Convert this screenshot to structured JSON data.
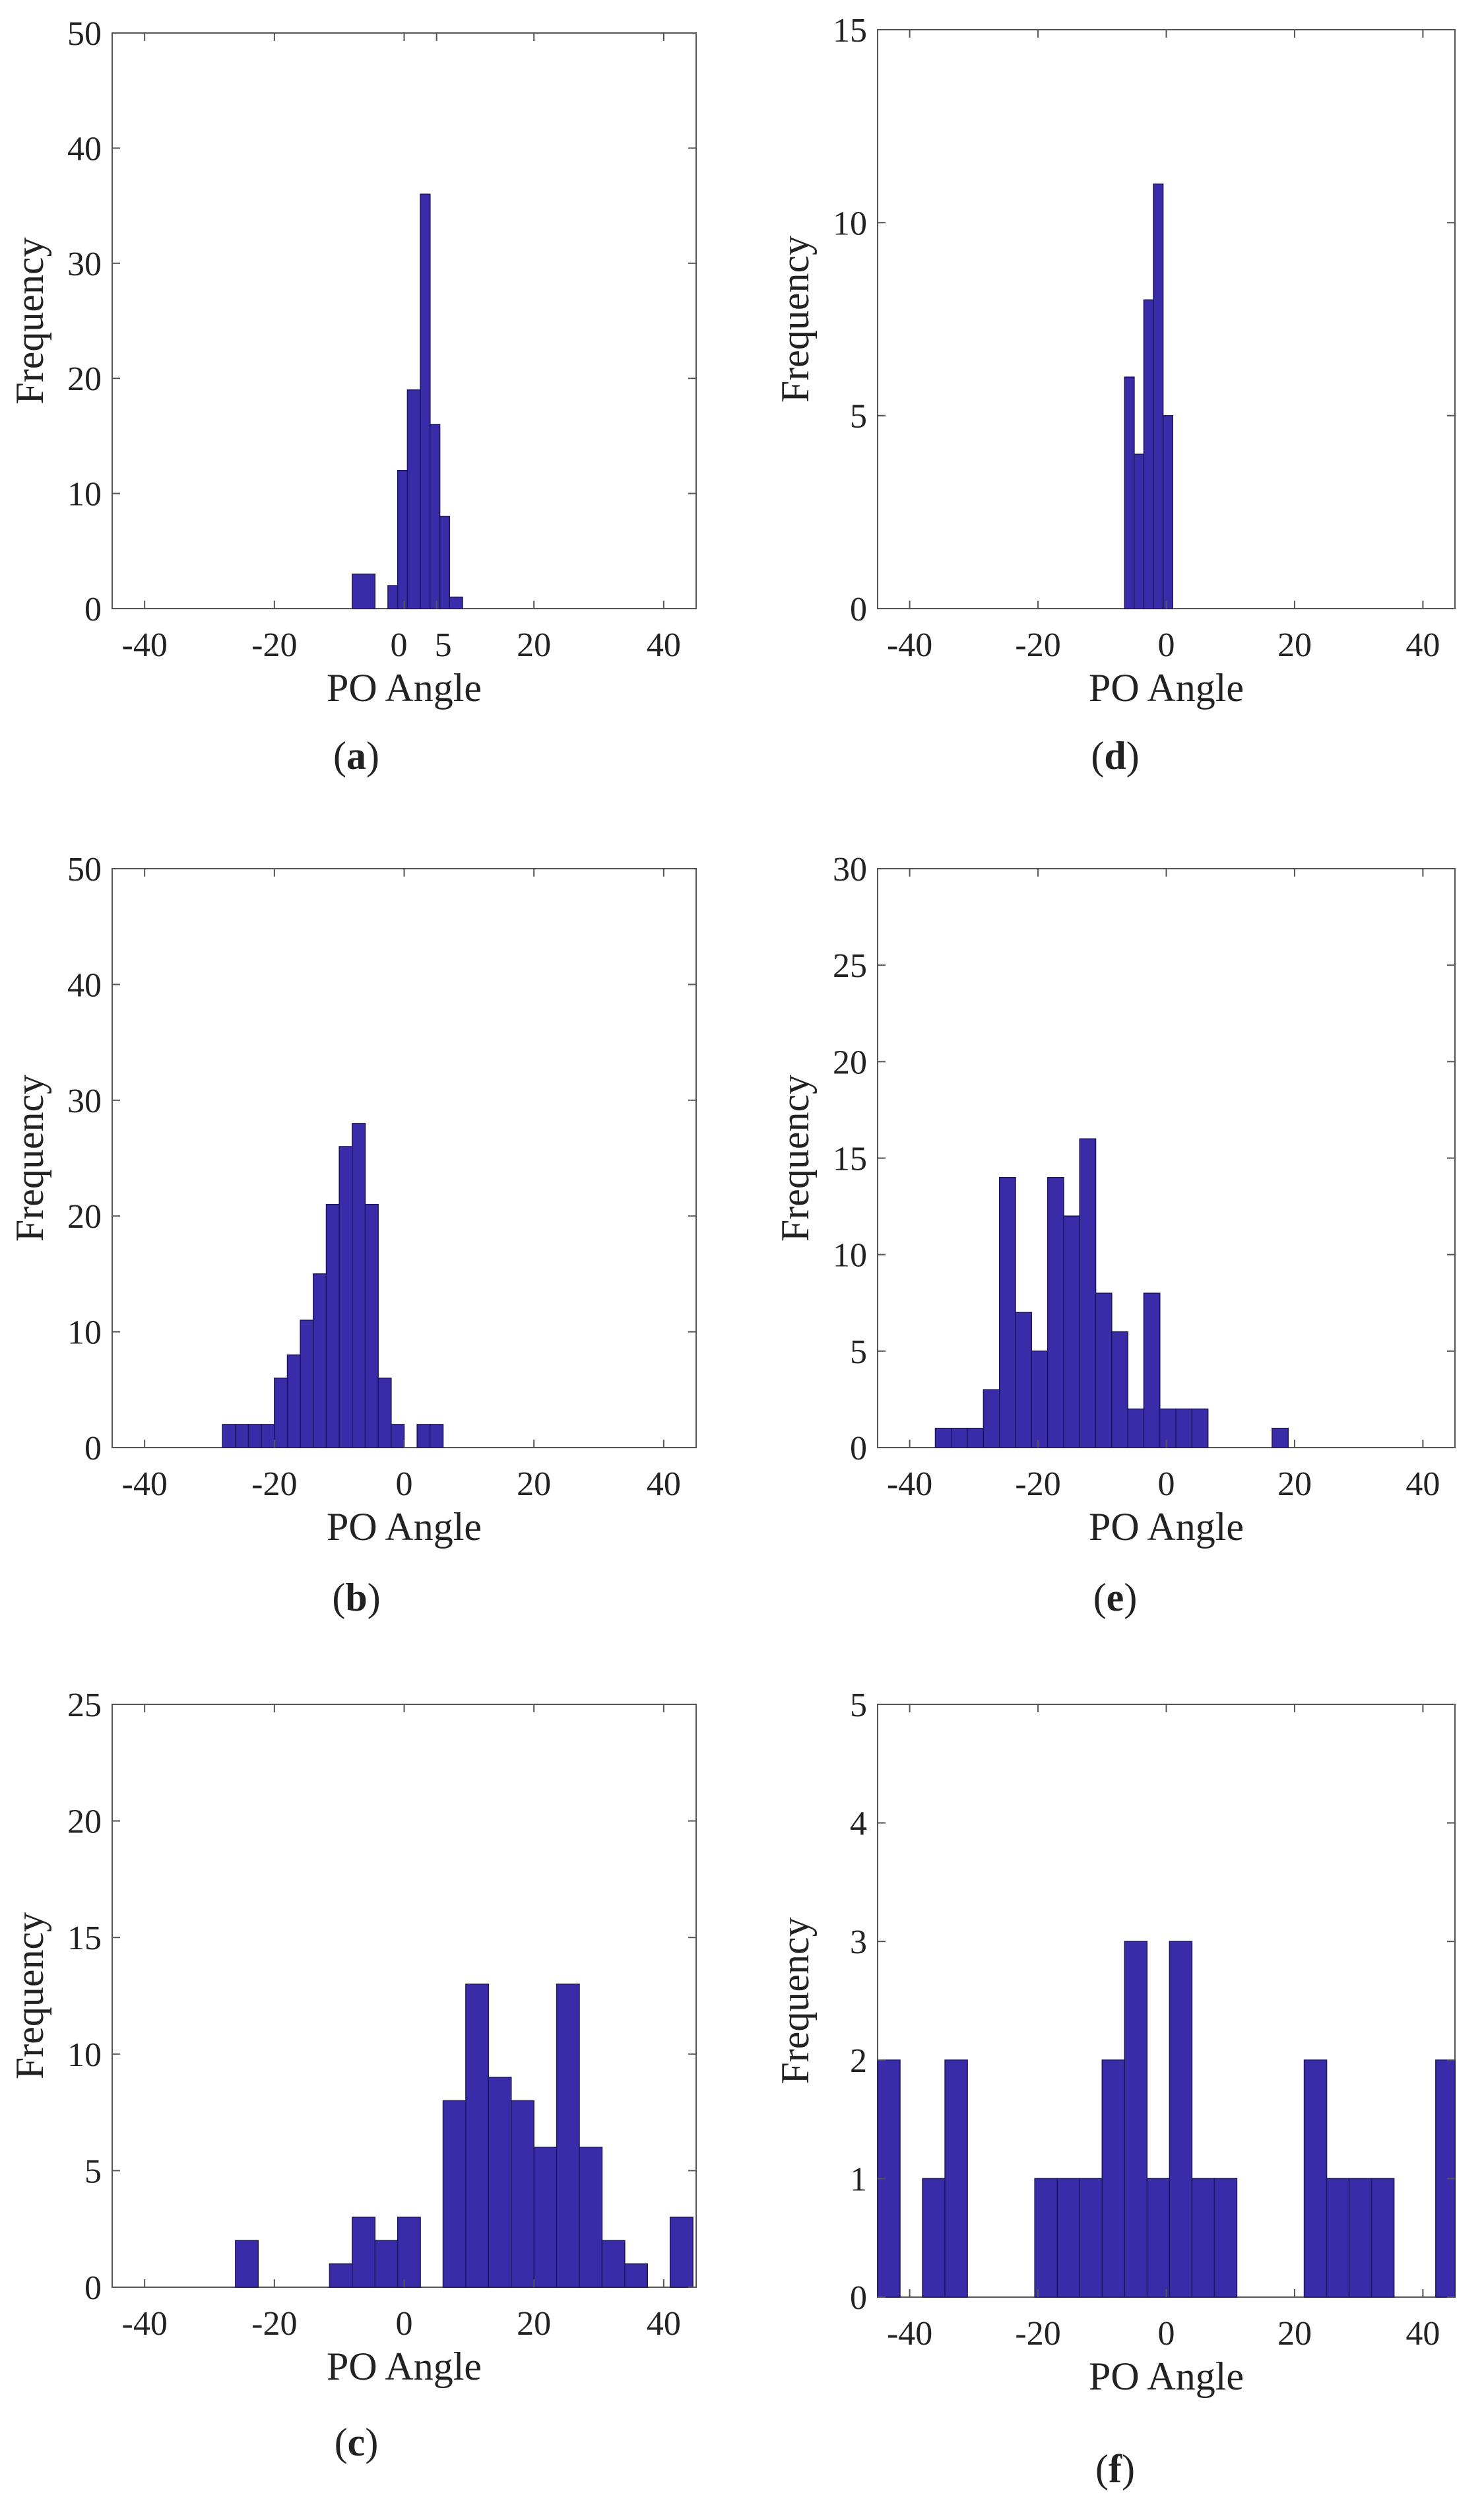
{
  "chart_data": [
    {
      "type": "bar",
      "panel": "a",
      "caption_letter": "a",
      "caption_open": "(",
      "caption_close": ")",
      "xlabel": "PO Angle",
      "ylabel": "Frequency",
      "xlim": [
        -45,
        45
      ],
      "ylim": [
        0,
        50
      ],
      "xticks": [
        -40,
        -20,
        0,
        5,
        20,
        40
      ],
      "yticks": [
        0,
        10,
        20,
        30,
        40,
        50
      ],
      "bins": [
        {
          "x0": -8,
          "x1": -4.5,
          "y": 3
        },
        {
          "x0": -2.5,
          "x1": -1,
          "y": 2
        },
        {
          "x0": -1,
          "x1": 0.5,
          "y": 12
        },
        {
          "x0": 0.5,
          "x1": 2.5,
          "y": 19
        },
        {
          "x0": 2.5,
          "x1": 4,
          "y": 36
        },
        {
          "x0": 4,
          "x1": 5.5,
          "y": 16
        },
        {
          "x0": 5.5,
          "x1": 7,
          "y": 8
        },
        {
          "x0": 7,
          "x1": 9,
          "y": 1
        }
      ]
    },
    {
      "type": "bar",
      "panel": "b",
      "caption_letter": "b",
      "caption_open": "(",
      "caption_close": ")",
      "xlabel": "PO Angle",
      "ylabel": "Frequency",
      "xlim": [
        -45,
        45
      ],
      "ylim": [
        0,
        50
      ],
      "xticks": [
        -40,
        -20,
        0,
        20,
        40
      ],
      "yticks": [
        0,
        10,
        20,
        30,
        40,
        50
      ],
      "bins": [
        {
          "x0": -28,
          "x1": -26,
          "y": 2
        },
        {
          "x0": -26,
          "x1": -24,
          "y": 2
        },
        {
          "x0": -24,
          "x1": -22,
          "y": 2
        },
        {
          "x0": -22,
          "x1": -20,
          "y": 2
        },
        {
          "x0": -20,
          "x1": -18,
          "y": 6
        },
        {
          "x0": -18,
          "x1": -16,
          "y": 8
        },
        {
          "x0": -16,
          "x1": -14,
          "y": 11
        },
        {
          "x0": -14,
          "x1": -12,
          "y": 15
        },
        {
          "x0": -12,
          "x1": -10,
          "y": 21
        },
        {
          "x0": -10,
          "x1": -8,
          "y": 26
        },
        {
          "x0": -8,
          "x1": -6,
          "y": 28
        },
        {
          "x0": -6,
          "x1": -4,
          "y": 21
        },
        {
          "x0": -4,
          "x1": -2,
          "y": 6
        },
        {
          "x0": -2,
          "x1": 0,
          "y": 2
        },
        {
          "x0": 2,
          "x1": 4,
          "y": 2
        },
        {
          "x0": 4,
          "x1": 6,
          "y": 2
        }
      ]
    },
    {
      "type": "bar",
      "panel": "c",
      "caption_letter": "c",
      "caption_open": "(",
      "caption_close": ")",
      "xlabel": "PO Angle",
      "ylabel": "Frequency",
      "xlim": [
        -45,
        45
      ],
      "ylim": [
        0,
        25
      ],
      "xticks": [
        -40,
        -20,
        0,
        20,
        40
      ],
      "yticks": [
        0,
        5,
        10,
        15,
        20,
        25
      ],
      "bins": [
        {
          "x0": -26,
          "x1": -22.5,
          "y": 2
        },
        {
          "x0": -11.5,
          "x1": -8,
          "y": 1
        },
        {
          "x0": -8,
          "x1": -4.5,
          "y": 3
        },
        {
          "x0": -4.5,
          "x1": -1,
          "y": 2
        },
        {
          "x0": -1,
          "x1": 2.5,
          "y": 3
        },
        {
          "x0": 6,
          "x1": 9.5,
          "y": 8
        },
        {
          "x0": 9.5,
          "x1": 13,
          "y": 13
        },
        {
          "x0": 13,
          "x1": 16.5,
          "y": 9
        },
        {
          "x0": 16.5,
          "x1": 20,
          "y": 8
        },
        {
          "x0": 20,
          "x1": 23.5,
          "y": 6
        },
        {
          "x0": 23.5,
          "x1": 27,
          "y": 13
        },
        {
          "x0": 27,
          "x1": 30.5,
          "y": 6
        },
        {
          "x0": 30.5,
          "x1": 34,
          "y": 2
        },
        {
          "x0": 34,
          "x1": 37.5,
          "y": 1
        },
        {
          "x0": 41,
          "x1": 44.5,
          "y": 3
        }
      ]
    },
    {
      "type": "bar",
      "panel": "d",
      "caption_letter": "d",
      "caption_open": "(",
      "caption_close": ")",
      "xlabel": "PO Angle",
      "ylabel": "Frequency",
      "xlim": [
        -45,
        45
      ],
      "ylim": [
        0,
        15
      ],
      "xticks": [
        -40,
        -20,
        0,
        20,
        40
      ],
      "yticks": [
        0,
        5,
        10,
        15
      ],
      "bins": [
        {
          "x0": -6.5,
          "x1": -5,
          "y": 6
        },
        {
          "x0": -5,
          "x1": -3.5,
          "y": 4
        },
        {
          "x0": -3.5,
          "x1": -2,
          "y": 8
        },
        {
          "x0": -2,
          "x1": -0.5,
          "y": 11
        },
        {
          "x0": -0.5,
          "x1": 1,
          "y": 5
        }
      ]
    },
    {
      "type": "bar",
      "panel": "e",
      "caption_letter": "e",
      "caption_open": "(",
      "caption_close": ")",
      "xlabel": "PO Angle",
      "ylabel": "Frequency",
      "xlim": [
        -45,
        45
      ],
      "ylim": [
        0,
        30
      ],
      "xticks": [
        -40,
        -20,
        0,
        20,
        40
      ],
      "yticks": [
        0,
        5,
        10,
        15,
        20,
        25,
        30
      ],
      "bins": [
        {
          "x0": -36,
          "x1": -33.5,
          "y": 1
        },
        {
          "x0": -33.5,
          "x1": -31,
          "y": 1
        },
        {
          "x0": -31,
          "x1": -28.5,
          "y": 1
        },
        {
          "x0": -28.5,
          "x1": -26,
          "y": 3
        },
        {
          "x0": -26,
          "x1": -23.5,
          "y": 14
        },
        {
          "x0": -23.5,
          "x1": -21,
          "y": 7
        },
        {
          "x0": -21,
          "x1": -18.5,
          "y": 5
        },
        {
          "x0": -18.5,
          "x1": -16,
          "y": 14
        },
        {
          "x0": -16,
          "x1": -13.5,
          "y": 12
        },
        {
          "x0": -13.5,
          "x1": -11,
          "y": 16
        },
        {
          "x0": -11,
          "x1": -8.5,
          "y": 8
        },
        {
          "x0": -8.5,
          "x1": -6,
          "y": 6
        },
        {
          "x0": -6,
          "x1": -3.5,
          "y": 2
        },
        {
          "x0": -3.5,
          "x1": -1,
          "y": 8
        },
        {
          "x0": -1,
          "x1": 1.5,
          "y": 2
        },
        {
          "x0": 1.5,
          "x1": 4,
          "y": 2
        },
        {
          "x0": 4,
          "x1": 6.5,
          "y": 2
        },
        {
          "x0": 16.5,
          "x1": 19,
          "y": 1
        }
      ]
    },
    {
      "type": "bar",
      "panel": "f",
      "caption_letter": "f",
      "caption_open": "(",
      "caption_close": ")",
      "xlabel": "PO Angle",
      "ylabel": "Frequency",
      "xlim": [
        -45,
        45
      ],
      "ylim": [
        0,
        5
      ],
      "xticks": [
        -40,
        -20,
        0,
        20,
        40
      ],
      "yticks": [
        0,
        1,
        2,
        3,
        4,
        5
      ],
      "bins": [
        {
          "x0": -45,
          "x1": -41.5,
          "y": 2
        },
        {
          "x0": -38,
          "x1": -34.5,
          "y": 1
        },
        {
          "x0": -34.5,
          "x1": -31,
          "y": 2
        },
        {
          "x0": -20.5,
          "x1": -17,
          "y": 1
        },
        {
          "x0": -17,
          "x1": -13.5,
          "y": 1
        },
        {
          "x0": -13.5,
          "x1": -10,
          "y": 1
        },
        {
          "x0": -10,
          "x1": -6.5,
          "y": 2
        },
        {
          "x0": -6.5,
          "x1": -3,
          "y": 3
        },
        {
          "x0": -3,
          "x1": 0.5,
          "y": 1
        },
        {
          "x0": 0.5,
          "x1": 4,
          "y": 3
        },
        {
          "x0": 4,
          "x1": 7.5,
          "y": 1
        },
        {
          "x0": 7.5,
          "x1": 11,
          "y": 1
        },
        {
          "x0": 21.5,
          "x1": 25,
          "y": 2
        },
        {
          "x0": 25,
          "x1": 28.5,
          "y": 1
        },
        {
          "x0": 28.5,
          "x1": 32,
          "y": 1
        },
        {
          "x0": 32,
          "x1": 35.5,
          "y": 1
        },
        {
          "x0": 42,
          "x1": 45,
          "y": 2
        }
      ]
    }
  ],
  "style": {
    "bar_fill": "#3a2ca8",
    "bar_edge": "#1a1660",
    "axis_color": "#555555",
    "text_color": "#222222"
  }
}
